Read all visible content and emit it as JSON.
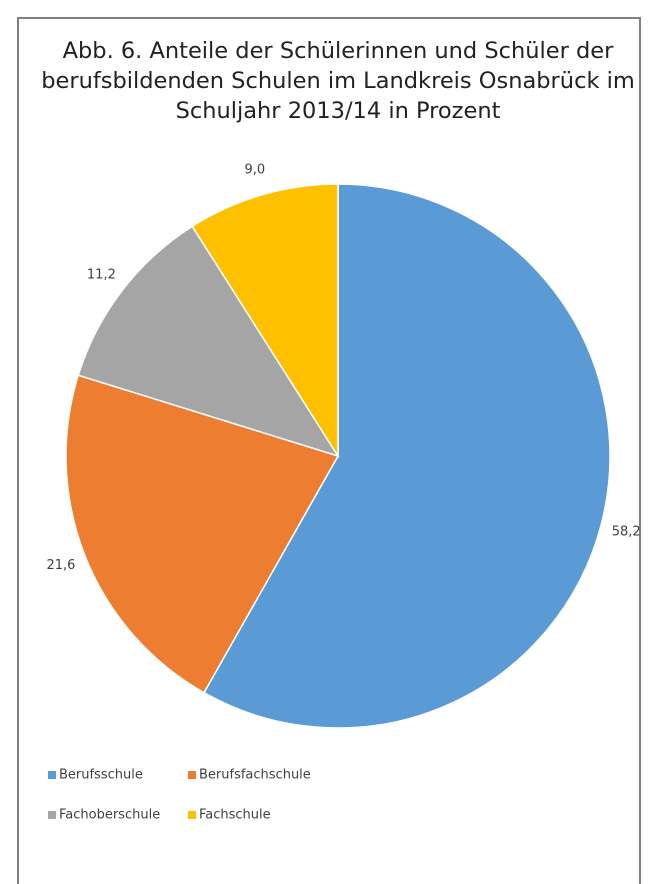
{
  "chart_data": {
    "type": "pie",
    "title": "Abb. 6. Anteile der Schülerinnen und Schüler der berufsbildenden Schulen im Landkreis Osnabrück im Schuljahr 2013/14 in Prozent",
    "categories": [
      "Berufsschule",
      "Berufsfachschule",
      "Fachoberschule",
      "Fachschule"
    ],
    "values": [
      58.2,
      21.6,
      11.2,
      9.0
    ],
    "value_labels": [
      "58,2",
      "21,6",
      "11,2",
      "9,0"
    ],
    "colors": [
      "#5b9bd5",
      "#ed7d31",
      "#a5a5a5",
      "#ffc000"
    ],
    "legend": "bottom"
  }
}
